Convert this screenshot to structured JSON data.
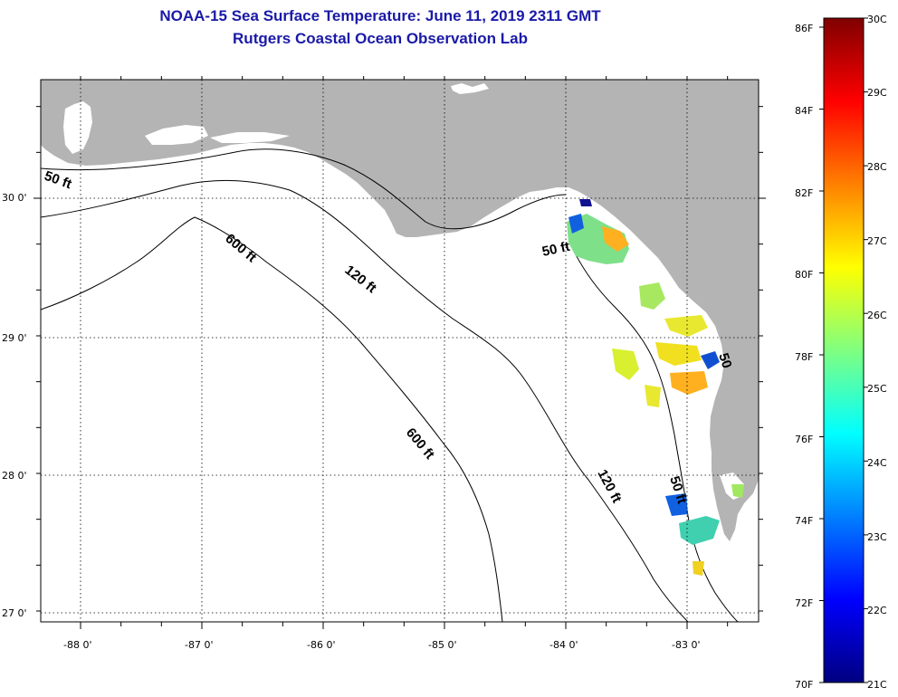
{
  "title": {
    "line1": "NOAA-15 Sea Surface Temperature:  June 11, 2019 2311 GMT",
    "line2": "Rutgers Coastal Ocean Observation Lab"
  },
  "map": {
    "lat_ticks": [
      "30 0'",
      "29 0'",
      "28 0'",
      "27 0'"
    ],
    "lon_ticks": [
      "-88 0'",
      "-87 0'",
      "-86 0'",
      "-85 0'",
      "-84 0'",
      "-83 0'"
    ],
    "contour_labels": [
      "50 ft",
      "120 ft",
      "600 ft",
      "600 ft",
      "50 ft",
      "120 ft",
      "50 ft",
      "50"
    ],
    "colors": {
      "land": "#b4b4b4",
      "water": "#ffffff",
      "contour": "#000000"
    }
  },
  "colorbar": {
    "f_labels": [
      "86F",
      "84F",
      "82F",
      "80F",
      "78F",
      "76F",
      "74F",
      "72F",
      "70F"
    ],
    "c_labels": [
      "30C",
      "29C",
      "28C",
      "27C",
      "26C",
      "25C",
      "24C",
      "23C",
      "22C",
      "21C"
    ],
    "gradient": [
      "#800000",
      "#ff0000",
      "#ff8000",
      "#ffff00",
      "#80ff80",
      "#00ffff",
      "#0080ff",
      "#0000ff",
      "#000080"
    ]
  }
}
